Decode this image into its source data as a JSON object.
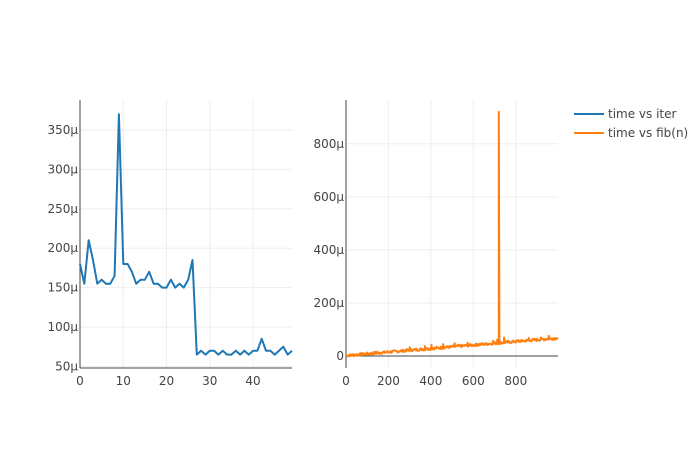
{
  "legend": [
    {
      "label": "time vs iter",
      "color": "#1f77b4"
    },
    {
      "label": "time vs fib(n)",
      "color": "#ff7f0e"
    }
  ],
  "chart_data": [
    {
      "type": "line",
      "series": [
        {
          "name": "time vs iter",
          "color": "#1f77b4",
          "x": [
            0,
            1,
            2,
            3,
            4,
            5,
            6,
            7,
            8,
            9,
            10,
            11,
            12,
            13,
            14,
            15,
            16,
            17,
            18,
            19,
            20,
            21,
            22,
            23,
            24,
            25,
            26,
            27,
            28,
            29,
            30,
            31,
            32,
            33,
            34,
            35,
            36,
            37,
            38,
            39,
            40,
            41,
            42,
            43,
            44,
            45,
            46,
            47,
            48,
            49
          ],
          "y": [
            180,
            155,
            210,
            185,
            155,
            160,
            155,
            155,
            165,
            370,
            180,
            180,
            170,
            155,
            160,
            160,
            170,
            155,
            155,
            150,
            150,
            160,
            150,
            155,
            150,
            160,
            185,
            65,
            70,
            65,
            70,
            70,
            65,
            70,
            65,
            65,
            70,
            65,
            70,
            65,
            70,
            70,
            85,
            70,
            70,
            65,
            70,
            75,
            65,
            70
          ]
        }
      ],
      "xlim": [
        0,
        49
      ],
      "ylim": [
        48,
        388
      ],
      "xticks": [
        0,
        10,
        20,
        30,
        40
      ],
      "xtick_labels": [
        "0",
        "10",
        "20",
        "30",
        "40"
      ],
      "yticks": [
        50,
        100,
        150,
        200,
        250,
        300,
        350
      ],
      "ytick_labels": [
        "50μ",
        "100μ",
        "150μ",
        "200μ",
        "250μ",
        "300μ",
        "350μ"
      ],
      "grid": true
    },
    {
      "type": "line",
      "series": [
        {
          "name": "time vs fib(n)",
          "color": "#ff7f0e",
          "trend": {
            "start": [
              0,
              2
            ],
            "end": [
              1000,
              68
            ]
          },
          "noise_amplitude": 5,
          "spikes": [
            {
              "x": 142,
              "y": 16
            },
            {
              "x": 300,
              "y": 33
            },
            {
              "x": 372,
              "y": 38
            },
            {
              "x": 403,
              "y": 42
            },
            {
              "x": 458,
              "y": 45
            },
            {
              "x": 512,
              "y": 48
            },
            {
              "x": 573,
              "y": 50
            },
            {
              "x": 618,
              "y": 46
            },
            {
              "x": 693,
              "y": 58
            },
            {
              "x": 713,
              "y": 62
            },
            {
              "x": 720,
              "y": 920
            },
            {
              "x": 745,
              "y": 70
            },
            {
              "x": 812,
              "y": 60
            },
            {
              "x": 862,
              "y": 68
            },
            {
              "x": 918,
              "y": 70
            },
            {
              "x": 955,
              "y": 76
            }
          ]
        }
      ],
      "xlim": [
        0,
        999
      ],
      "ylim": [
        -45,
        965
      ],
      "xticks": [
        0,
        200,
        400,
        600,
        800
      ],
      "xtick_labels": [
        "0",
        "200",
        "400",
        "600",
        "800"
      ],
      "yticks": [
        0,
        200,
        400,
        600,
        800
      ],
      "ytick_labels": [
        "0",
        "200μ",
        "400μ",
        "600μ",
        "800μ"
      ],
      "grid": true
    }
  ]
}
